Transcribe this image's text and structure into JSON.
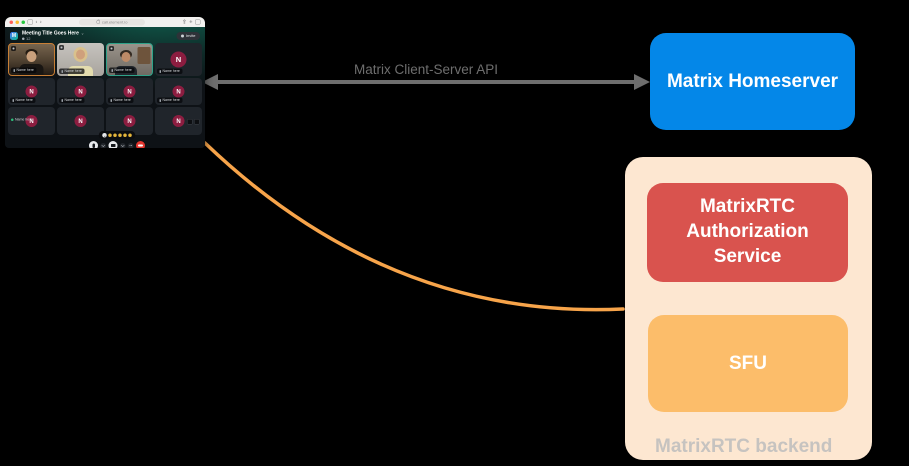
{
  "diagram": {
    "api_label": "Matrix Client-Server API",
    "homeserver_label": "Matrix Homeserver",
    "auth_label": "MatrixRTC Authorization Service",
    "sfu_label": "SFU",
    "backend_label": "MatrixRTC backend"
  },
  "colors": {
    "arrow": "#6e6e6e",
    "curve": "#f7a44a",
    "homeserver_bg": "#0487e8",
    "backend_bg": "#fde7d1",
    "auth_bg": "#d9534e",
    "sfu_bg": "#fcbd6a",
    "avatar_bg": "#8c1d40",
    "speaking_green": "#2ec27e",
    "traffic_close": "#ff5f57",
    "traffic_min": "#febc2e",
    "traffic_max": "#28c840"
  },
  "call_window": {
    "browser": {
      "address": "call.element.io",
      "back_glyph": "‹",
      "forward_glyph": "›",
      "plus_glyph": "+"
    },
    "header": {
      "logo_letter": "M",
      "title": "Meeting Title Goes Here",
      "chevron": "⌄",
      "participants": "12",
      "invite_label": "Invite"
    },
    "avatar_letter": "N",
    "reactions_count": 5,
    "tiles": [
      {
        "kind": "video",
        "variant": "v1",
        "name": "Name here",
        "border": "#c87f35",
        "pin": true
      },
      {
        "kind": "video",
        "variant": "v2",
        "name": "Name here",
        "pin": true
      },
      {
        "kind": "video",
        "variant": "v3",
        "name": "Name here",
        "border": "#2fa289",
        "pin": true
      },
      {
        "kind": "avatar",
        "big": true,
        "name": "Name here"
      },
      {
        "kind": "avatar",
        "name": "Name here"
      },
      {
        "kind": "avatar",
        "name": "Name here"
      },
      {
        "kind": "avatar",
        "name": "Name here"
      },
      {
        "kind": "avatar",
        "name": "Name here"
      },
      {
        "kind": "avatar",
        "speaking": "Name here"
      },
      {
        "kind": "avatar"
      },
      {
        "kind": "avatar"
      },
      {
        "kind": "avatar",
        "corner_icons": true
      }
    ],
    "controls": [
      {
        "name": "mic-button",
        "style": "light",
        "glyph": "mic"
      },
      {
        "name": "mic-options-button",
        "style": "darksm",
        "glyph": "chev"
      },
      {
        "name": "camera-button",
        "style": "light",
        "glyph": "cam"
      },
      {
        "name": "camera-options-button",
        "style": "darksm",
        "glyph": "chev"
      },
      {
        "name": "more-options-button",
        "style": "darksm",
        "glyph": "dots"
      },
      {
        "name": "hangup-button",
        "style": "red",
        "glyph": "phone"
      }
    ]
  }
}
